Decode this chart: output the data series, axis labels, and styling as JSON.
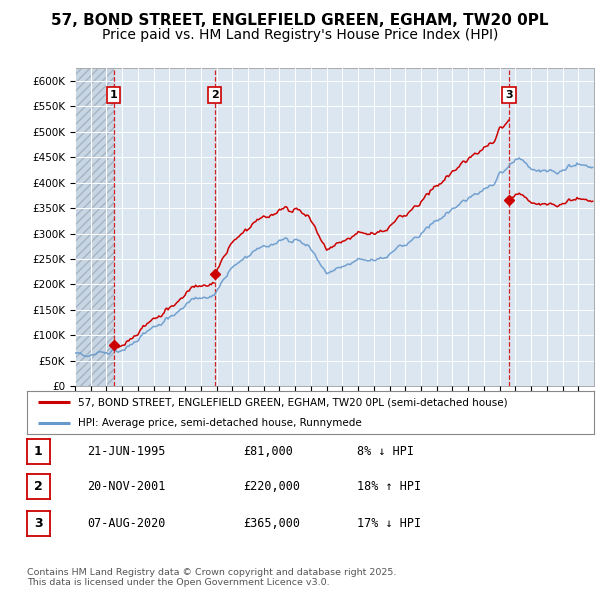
{
  "title_line1": "57, BOND STREET, ENGLEFIELD GREEN, EGHAM, TW20 0PL",
  "title_line2": "Price paid vs. HM Land Registry's House Price Index (HPI)",
  "ylim": [
    0,
    625000
  ],
  "yticks": [
    0,
    50000,
    100000,
    150000,
    200000,
    250000,
    300000,
    350000,
    400000,
    450000,
    500000,
    550000,
    600000
  ],
  "ytick_labels": [
    "£0",
    "£50K",
    "£100K",
    "£150K",
    "£200K",
    "£250K",
    "£300K",
    "£350K",
    "£400K",
    "£450K",
    "£500K",
    "£550K",
    "£600K"
  ],
  "xlim_start": 1993.0,
  "xlim_end": 2026.0,
  "plot_bg_color": "#dce6f1",
  "hatch_region_end": 1995.47,
  "sale1_x": 1995.47,
  "sale1_y": 81000,
  "sale2_x": 2001.89,
  "sale2_y": 220000,
  "sale3_x": 2020.59,
  "sale3_y": 365000,
  "red_line_color": "#cc0000",
  "blue_line_color": "#6699cc",
  "legend_entry1": "57, BOND STREET, ENGLEFIELD GREEN, EGHAM, TW20 0PL (semi-detached house)",
  "legend_entry2": "HPI: Average price, semi-detached house, Runnymede",
  "table_rows": [
    {
      "num": "1",
      "date": "21-JUN-1995",
      "price": "£81,000",
      "hpi": "8% ↓ HPI"
    },
    {
      "num": "2",
      "date": "20-NOV-2001",
      "price": "£220,000",
      "hpi": "18% ↑ HPI"
    },
    {
      "num": "3",
      "date": "07-AUG-2020",
      "price": "£365,000",
      "hpi": "17% ↓ HPI"
    }
  ],
  "footer": "Contains HM Land Registry data © Crown copyright and database right 2025.\nThis data is licensed under the Open Government Licence v3.0.",
  "title_fontsize": 11,
  "subtitle_fontsize": 10
}
